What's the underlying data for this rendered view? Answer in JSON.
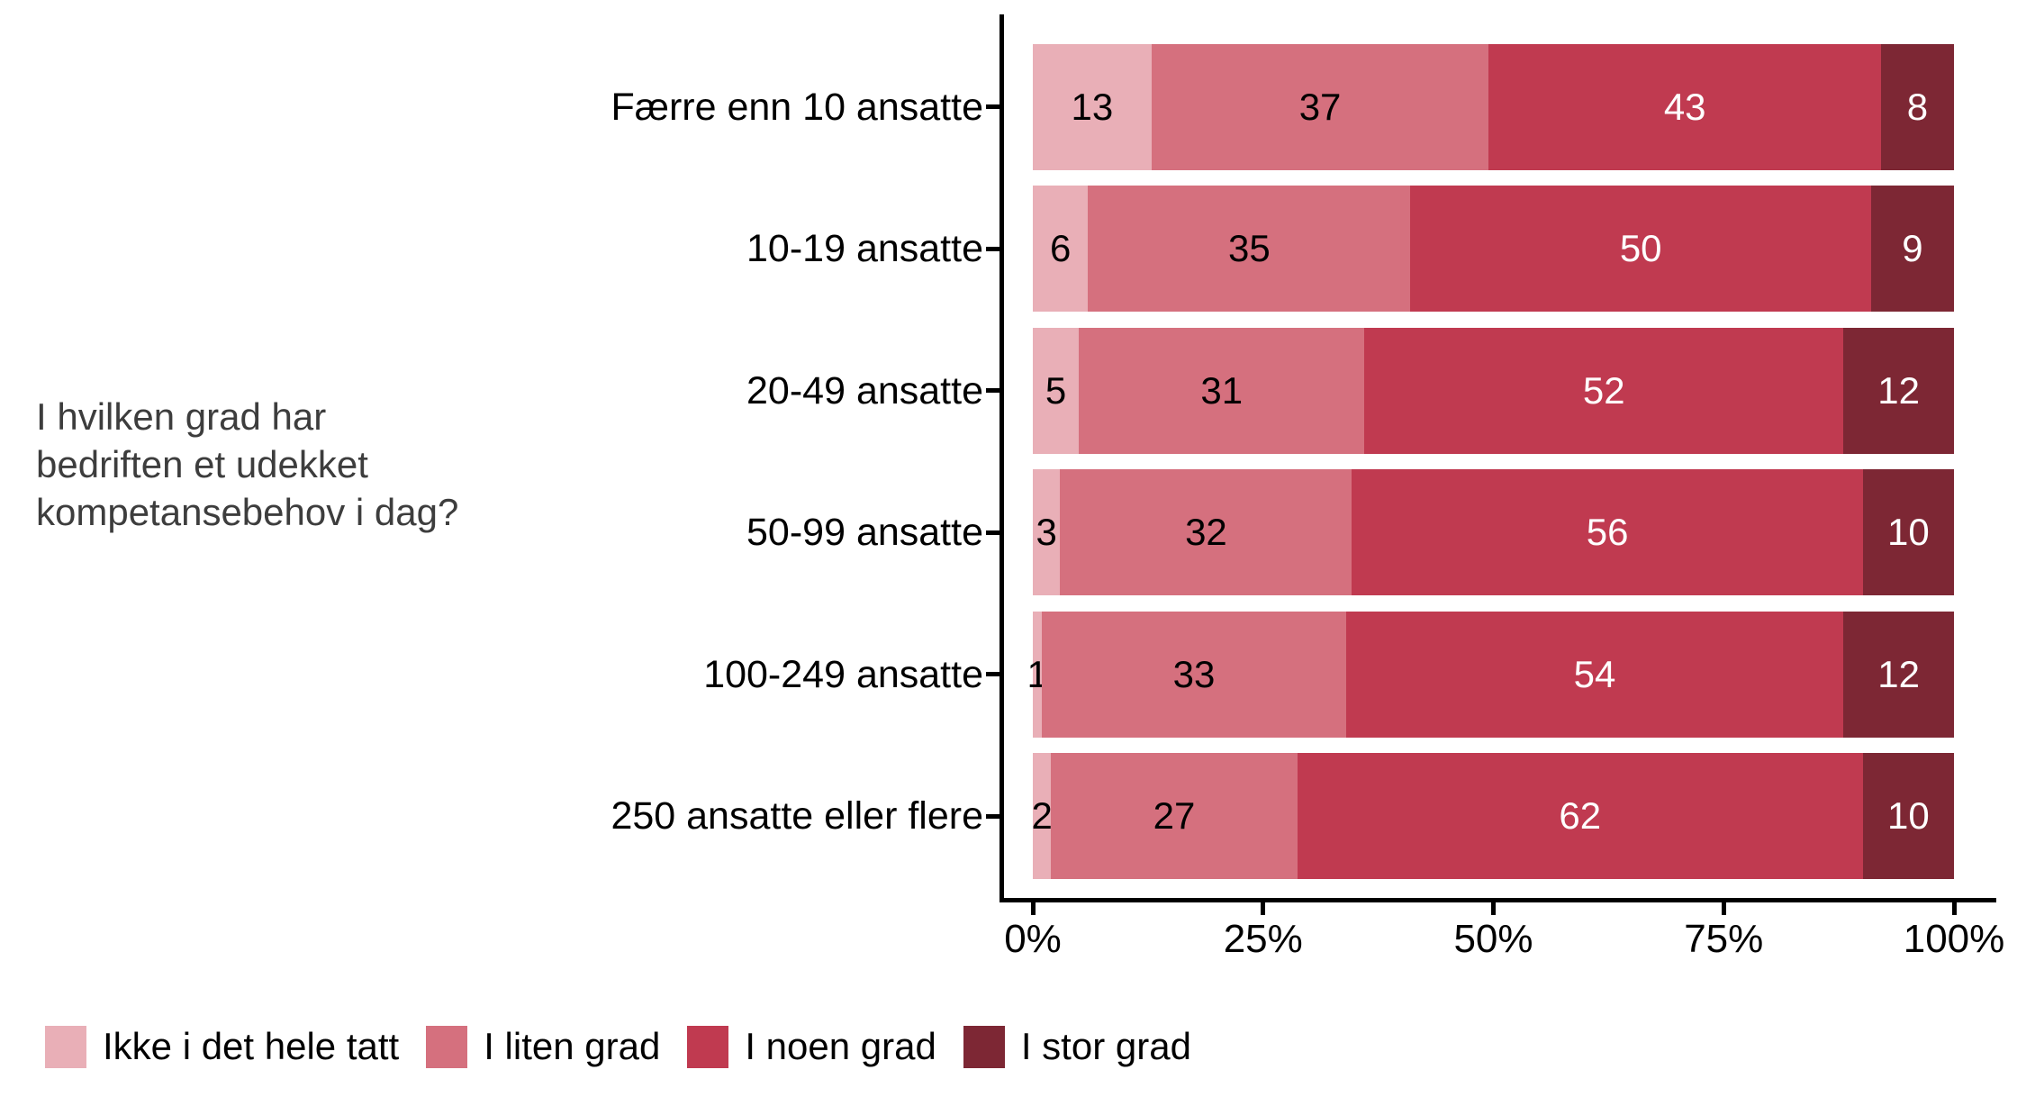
{
  "question": {
    "lines": [
      "I hvilken grad har",
      "bedriften et udekket",
      "kompetansebehov i dag?"
    ],
    "color": "#3d3d3d"
  },
  "chart_data": {
    "type": "bar",
    "orientation": "horizontal",
    "stacked": true,
    "normalized_to_100": true,
    "title": "",
    "xlabel": "",
    "ylabel": "I hvilken grad har bedriften et udekket kompetansebehov i dag?",
    "categories": [
      "Færre enn 10 ansatte",
      "10-19 ansatte",
      "20-49 ansatte",
      "50-99 ansatte",
      "100-249 ansatte",
      "250 ansatte eller flere"
    ],
    "series": [
      {
        "name": "Ikke i det hele tatt",
        "color": "#E9AFB7",
        "label_color": "#000000",
        "values": [
          13,
          6,
          5,
          3,
          1,
          2
        ]
      },
      {
        "name": "I liten grad",
        "color": "#D5707E",
        "label_color": "#000000",
        "values": [
          37,
          35,
          31,
          32,
          33,
          27
        ]
      },
      {
        "name": "I noen grad",
        "color": "#C03A50",
        "label_color": "#FFFFFF",
        "values": [
          43,
          50,
          52,
          56,
          54,
          62
        ]
      },
      {
        "name": "I stor grad",
        "color": "#7D2734",
        "label_color": "#FFFFFF",
        "values": [
          8,
          9,
          12,
          10,
          12,
          10
        ]
      }
    ],
    "x_ticks": [
      "0%",
      "25%",
      "50%",
      "75%",
      "100%"
    ],
    "xlim": [
      0,
      100
    ],
    "grid": false,
    "legend_position": "bottom",
    "axis_color": "#000000",
    "background": "#FFFFFF"
  }
}
